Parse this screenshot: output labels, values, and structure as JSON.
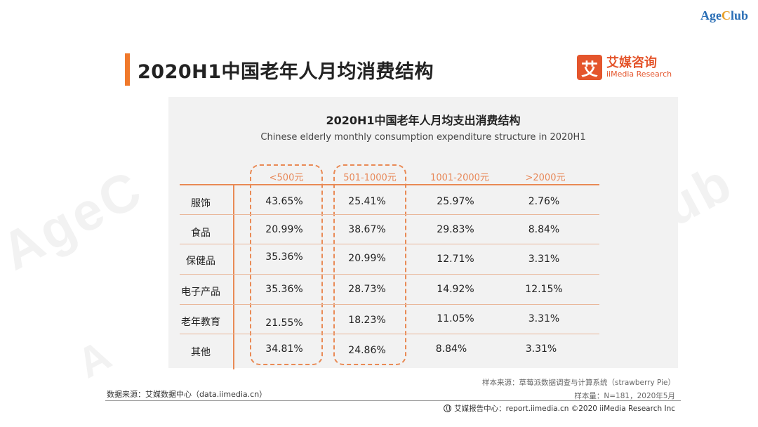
{
  "brand": {
    "part1": "Age",
    "part2": "C",
    "part3": "lub"
  },
  "page_title": "2020H1中国老年人月均消费结构",
  "logo": {
    "mark": "艾",
    "cn": "艾媒咨询",
    "en": "iiMedia Research"
  },
  "watermark": {
    "left": "AgeC",
    "right": "lub",
    "bottom": "A"
  },
  "chart_data": {
    "type": "table",
    "title": "2020H1中国老年人月均支出消费结构",
    "subtitle": "Chinese elderly monthly consumption expenditure structure in 2020H1",
    "columns": [
      "<500元",
      "501-1000元",
      "1001-2000元",
      ">2000元"
    ],
    "highlighted_columns": [
      "<500元",
      "501-1000元"
    ],
    "rows": [
      {
        "label": "服饰",
        "values": [
          "43.65%",
          "25.41%",
          "25.97%",
          "2.76%"
        ]
      },
      {
        "label": "食品",
        "values": [
          "20.99%",
          "38.67%",
          "29.83%",
          "8.84%"
        ]
      },
      {
        "label": "保健品",
        "values": [
          "35.36%",
          "20.99%",
          "12.71%",
          "3.31%"
        ]
      },
      {
        "label": "电子产品",
        "values": [
          "35.36%",
          "28.73%",
          "14.92%",
          "12.15%"
        ]
      },
      {
        "label": "老年教育",
        "values": [
          "21.55%",
          "18.23%",
          "11.05%",
          "3.31%"
        ]
      },
      {
        "label": "其他",
        "values": [
          "34.81%",
          "24.86%",
          "8.84%",
          "3.31%"
        ]
      }
    ]
  },
  "footer": {
    "sample_source": "样本来源：草莓派数据调查与计算系统（strawberry Pie）",
    "sample_size": "样本量：N=181，2020年5月",
    "data_source": "数据来源：艾媒数据中心（data.iimedia.cn）",
    "report": "艾媒报告中心：report.iimedia.cn  ©2020  iiMedia Research  Inc"
  },
  "colors": {
    "accent": "#f0792b",
    "logo": "#e4552c",
    "table_line": "#e98a55"
  }
}
